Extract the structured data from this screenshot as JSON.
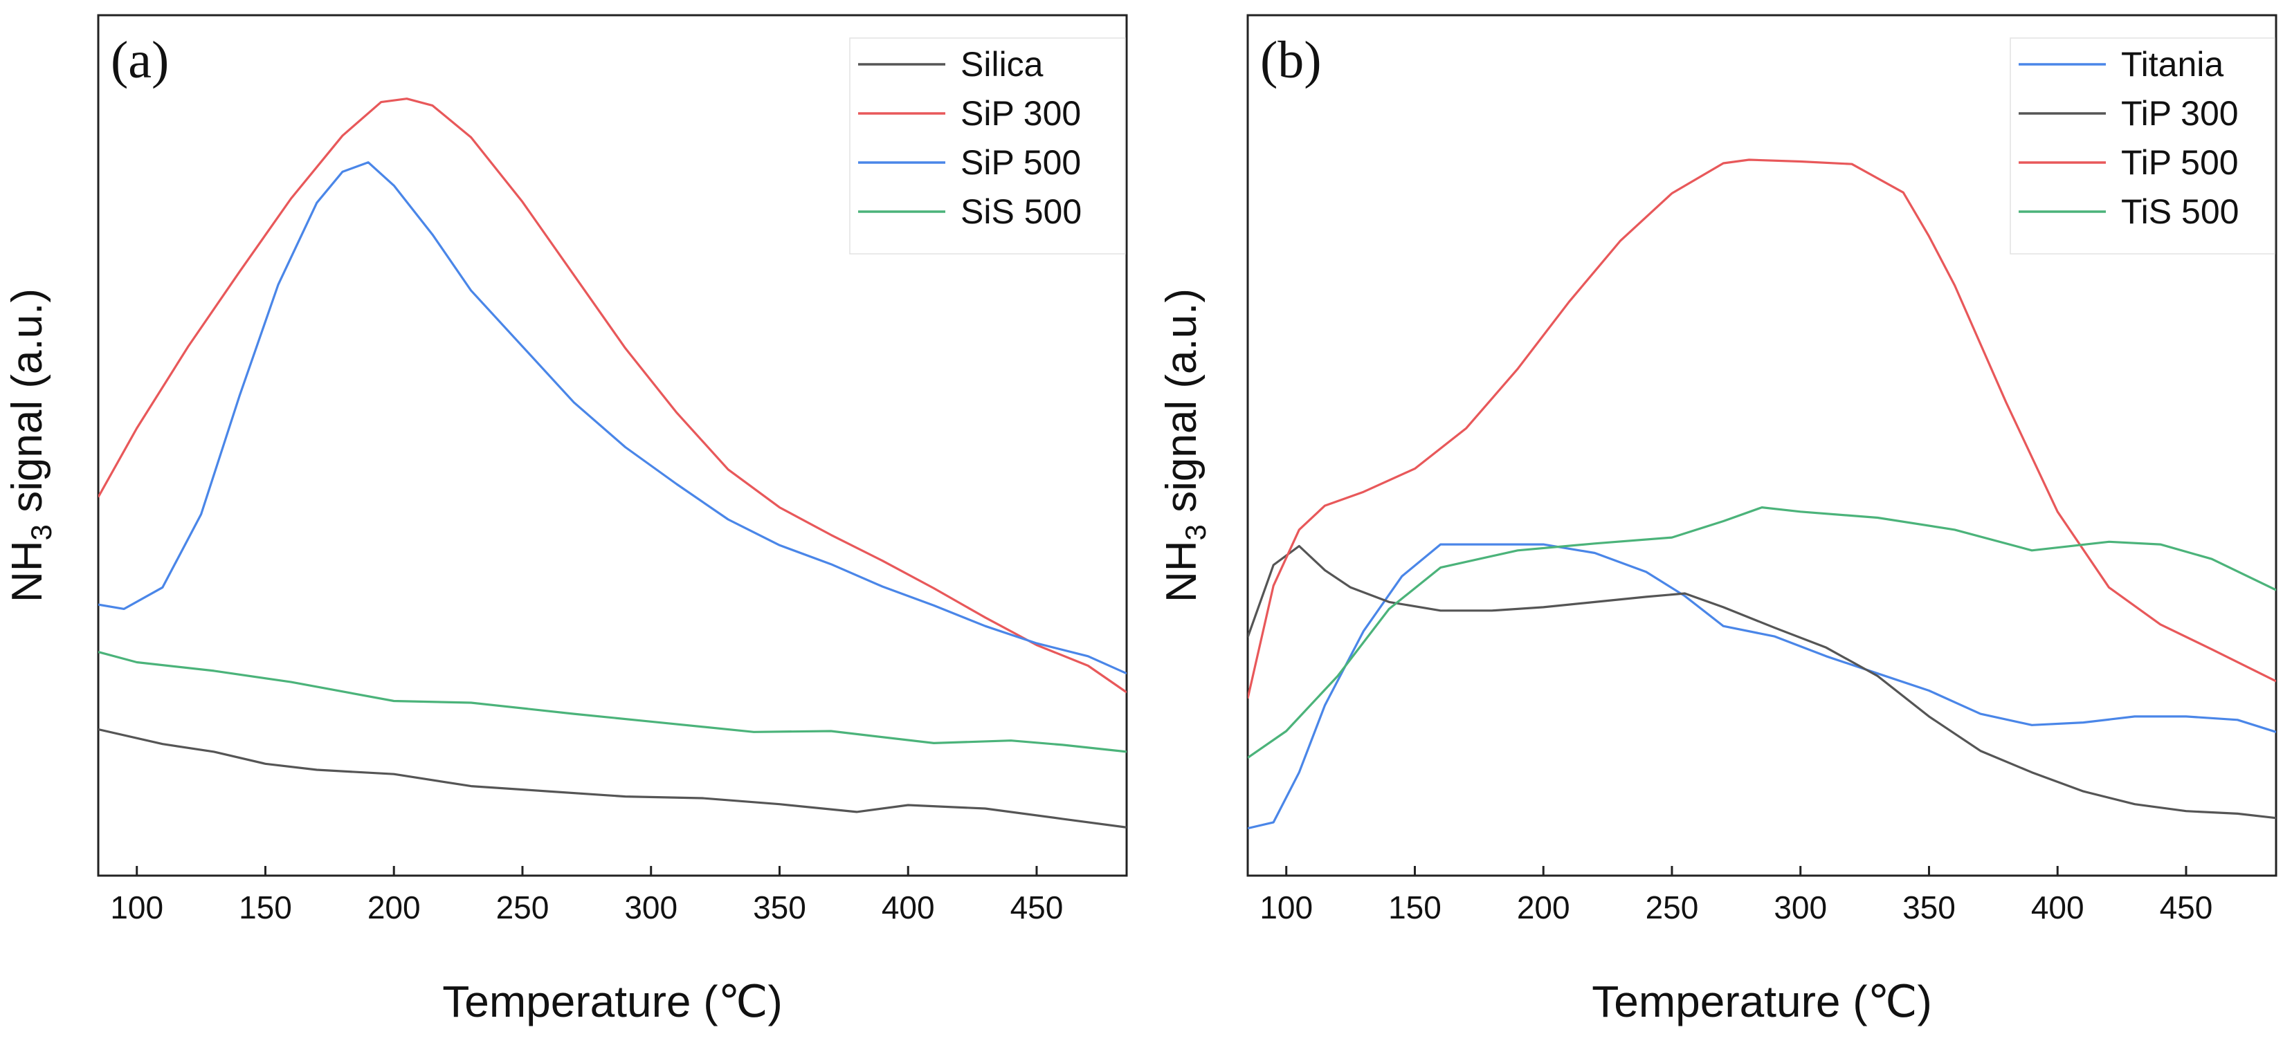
{
  "chart_data": [
    {
      "type": "line",
      "panel_label": "(a)",
      "xlabel": "Temperature (℃)",
      "ylabel_main": "NH",
      "ylabel_sub": "3",
      "ylabel_rest": " signal (a.u.)",
      "xlim": [
        85,
        485
      ],
      "ylim": [
        0,
        100
      ],
      "xticks": [
        100,
        150,
        200,
        250,
        300,
        350,
        400,
        450
      ],
      "yticks_shown": false,
      "legend_position": "top-right",
      "series": [
        {
          "name": "Silica",
          "color": "#555555",
          "x": [
            85,
            110,
            130,
            150,
            170,
            200,
            230,
            260,
            290,
            320,
            350,
            380,
            400,
            430,
            460,
            485
          ],
          "y": [
            17.0,
            15.3,
            14.4,
            13.0,
            12.3,
            11.8,
            10.4,
            9.8,
            9.2,
            9.0,
            8.3,
            7.4,
            8.2,
            7.8,
            6.6,
            5.6
          ]
        },
        {
          "name": "SiP 300",
          "color": "#e8585a",
          "x": [
            85,
            100,
            120,
            140,
            160,
            180,
            195,
            205,
            215,
            230,
            250,
            270,
            290,
            310,
            330,
            350,
            370,
            390,
            410,
            430,
            450,
            470,
            485
          ],
          "y": [
            44.0,
            52.0,
            61.5,
            70.2,
            78.7,
            86.0,
            89.9,
            90.3,
            89.5,
            85.8,
            78.3,
            69.8,
            61.3,
            53.8,
            47.2,
            42.8,
            39.6,
            36.6,
            33.4,
            30.0,
            26.8,
            24.4,
            21.3
          ]
        },
        {
          "name": "SiP 500",
          "color": "#4a86e8",
          "x": [
            85,
            95,
            110,
            125,
            140,
            155,
            170,
            180,
            190,
            200,
            215,
            230,
            250,
            270,
            290,
            310,
            330,
            350,
            370,
            390,
            410,
            430,
            450,
            470,
            485
          ],
          "y": [
            31.5,
            31.0,
            33.5,
            42.0,
            55.8,
            68.7,
            78.2,
            81.8,
            82.9,
            80.2,
            74.5,
            68.0,
            61.5,
            55.0,
            49.8,
            45.5,
            41.4,
            38.4,
            36.2,
            33.6,
            31.4,
            29.0,
            27.0,
            25.5,
            23.5
          ]
        },
        {
          "name": "SiS 500",
          "color": "#4bb37a",
          "x": [
            85,
            100,
            130,
            160,
            200,
            230,
            270,
            300,
            340,
            370,
            410,
            440,
            460,
            485
          ],
          "y": [
            26.0,
            24.8,
            23.8,
            22.5,
            20.3,
            20.1,
            18.8,
            17.9,
            16.7,
            16.8,
            15.4,
            15.7,
            15.2,
            14.4
          ]
        }
      ]
    },
    {
      "type": "line",
      "panel_label": "(b)",
      "xlabel": "Temperature (℃)",
      "ylabel_main": "NH",
      "ylabel_sub": "3",
      "ylabel_rest": " signal (a.u.)",
      "xlim": [
        85,
        485
      ],
      "ylim": [
        0,
        100
      ],
      "xticks": [
        100,
        150,
        200,
        250,
        300,
        350,
        400,
        450
      ],
      "yticks_shown": false,
      "legend_position": "top-right",
      "series": [
        {
          "name": "Titania",
          "color": "#4a86e8",
          "x": [
            85,
            95,
            105,
            115,
            130,
            145,
            160,
            180,
            200,
            220,
            240,
            255,
            270,
            290,
            310,
            330,
            350,
            370,
            390,
            410,
            430,
            450,
            470,
            485
          ],
          "y": [
            5.5,
            6.2,
            12.0,
            19.8,
            28.4,
            34.8,
            38.5,
            38.5,
            38.5,
            37.5,
            35.3,
            32.5,
            29.0,
            27.8,
            25.5,
            23.5,
            21.5,
            18.8,
            17.5,
            17.8,
            18.5,
            18.5,
            18.1,
            16.7
          ]
        },
        {
          "name": "TiP 300",
          "color": "#555555",
          "x": [
            85,
            95,
            105,
            115,
            125,
            140,
            160,
            180,
            200,
            220,
            240,
            255,
            270,
            290,
            310,
            330,
            350,
            370,
            390,
            410,
            430,
            450,
            470,
            485
          ],
          "y": [
            27.7,
            36.1,
            38.3,
            35.5,
            33.5,
            31.8,
            30.8,
            30.8,
            31.2,
            31.8,
            32.4,
            32.8,
            31.2,
            28.8,
            26.5,
            23.2,
            18.5,
            14.5,
            12.0,
            9.8,
            8.3,
            7.5,
            7.2,
            6.7
          ]
        },
        {
          "name": "TiP 500",
          "color": "#e8585a",
          "x": [
            85,
            95,
            105,
            115,
            130,
            150,
            170,
            190,
            210,
            230,
            250,
            270,
            280,
            300,
            320,
            340,
            350,
            360,
            380,
            400,
            420,
            440,
            460,
            485
          ],
          "y": [
            20.6,
            33.7,
            40.2,
            43.0,
            44.6,
            47.3,
            52.0,
            58.9,
            66.7,
            73.8,
            79.3,
            82.8,
            83.2,
            83.0,
            82.7,
            79.4,
            74.3,
            68.6,
            55.0,
            42.3,
            33.5,
            29.2,
            26.3,
            22.6
          ]
        },
        {
          "name": "TiS 500",
          "color": "#4bb37a",
          "x": [
            85,
            100,
            120,
            140,
            160,
            190,
            220,
            250,
            270,
            285,
            300,
            330,
            360,
            390,
            420,
            440,
            460,
            485
          ],
          "y": [
            13.7,
            16.8,
            23.2,
            31.0,
            35.8,
            37.8,
            38.6,
            39.3,
            41.2,
            42.8,
            42.3,
            41.6,
            40.2,
            37.8,
            38.8,
            38.5,
            36.8,
            33.2
          ]
        }
      ]
    }
  ]
}
